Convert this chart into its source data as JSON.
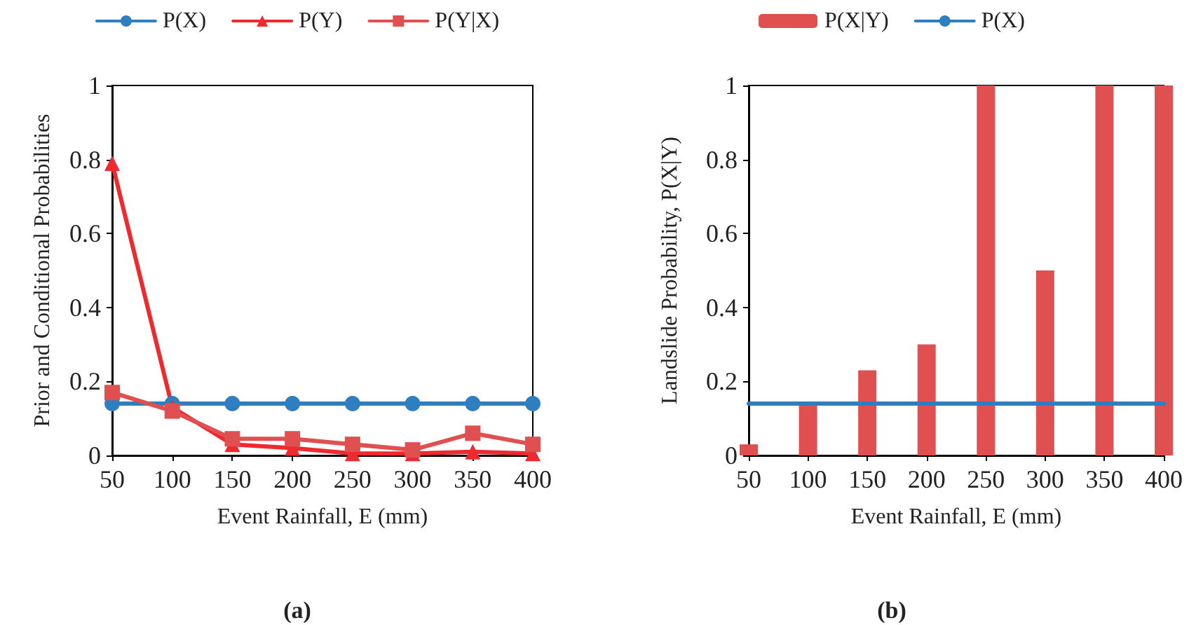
{
  "chart_data": [
    {
      "type": "line",
      "xlabel": "Event Rainfall, E (mm)",
      "ylabel": "Prior and Conditional Probabilities",
      "x": [
        50,
        100,
        150,
        200,
        250,
        300,
        350,
        400
      ],
      "xlim": [
        50,
        400
      ],
      "xticks": [
        50,
        100,
        150,
        200,
        250,
        300,
        350,
        400
      ],
      "ylim": [
        0,
        1
      ],
      "yticks": [
        0,
        0.2,
        0.4,
        0.6,
        0.8,
        1
      ],
      "grid": false,
      "legend": "top",
      "annotations": [
        "(a)"
      ],
      "series": [
        {
          "name": "P(X)",
          "color": "#2e7fc1",
          "marker": "circle",
          "values": [
            0.14,
            0.14,
            0.14,
            0.14,
            0.14,
            0.14,
            0.14,
            0.14
          ]
        },
        {
          "name": "P(Y)",
          "color": "#ee2a2f",
          "marker": "triangle",
          "values": [
            0.79,
            0.13,
            0.03,
            0.02,
            0.005,
            0.005,
            0.01,
            0.005
          ]
        },
        {
          "name": "P(Y|X)",
          "color": "#e05050",
          "marker": "square",
          "values": [
            0.17,
            0.12,
            0.045,
            0.045,
            0.03,
            0.015,
            0.06,
            0.03
          ]
        }
      ]
    },
    {
      "type": "bar",
      "xlabel": "Event Rainfall, E (mm)",
      "ylabel": "Landslide Probability, P(X|Y)",
      "x": [
        50,
        100,
        150,
        200,
        250,
        300,
        350,
        400
      ],
      "xlim": [
        50,
        400
      ],
      "xticks": [
        50,
        100,
        150,
        200,
        250,
        300,
        350,
        400
      ],
      "ylim": [
        0,
        1
      ],
      "yticks": [
        0,
        0.2,
        0.4,
        0.6,
        0.8,
        1
      ],
      "grid": false,
      "legend": "top",
      "annotations": [
        "(b)"
      ],
      "series": [
        {
          "name": "P(X|Y)",
          "color": "#e05050",
          "values": [
            0.03,
            0.14,
            0.23,
            0.3,
            1,
            0.5,
            1,
            1
          ]
        },
        {
          "name": "P(X)",
          "type": "line",
          "marker": "none",
          "color": "#2e7fc1",
          "values": [
            0.14,
            0.14,
            0.14,
            0.14,
            0.14,
            0.14,
            0.14,
            0.14
          ]
        }
      ]
    }
  ]
}
